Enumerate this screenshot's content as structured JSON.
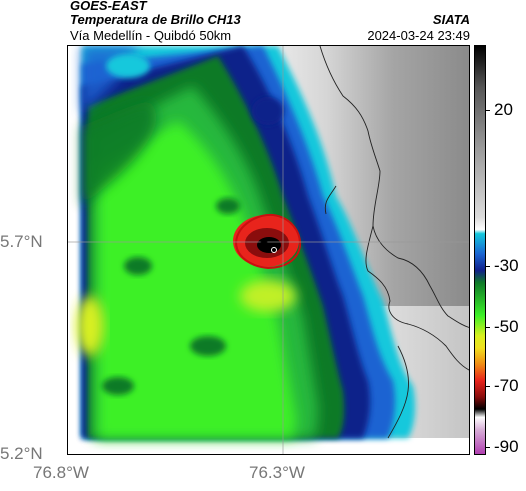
{
  "header": {
    "satellite": "GOES-EAST",
    "product": "Temperatura de Brillo CH13",
    "area": "Vía Medellín - Quibdó 50km",
    "organization": "SIATA",
    "datetime": "2024-03-24 23:49"
  },
  "axes": {
    "lat_labels": [
      "5.7°N",
      "5.2°N"
    ],
    "lon_labels": [
      "76.8°W",
      "76.3°W"
    ]
  },
  "colorbar": {
    "labels": [
      "20",
      "-30",
      "-50",
      "-70",
      "-90"
    ]
  },
  "colors": {
    "cold_core": "#000000",
    "red": "#e8241c",
    "green_bright": "#3cf028",
    "dark_green": "#0f7a28",
    "navy": "#11208a",
    "cyan": "#14c8dc",
    "land_gray": "#bdbdbd"
  }
}
